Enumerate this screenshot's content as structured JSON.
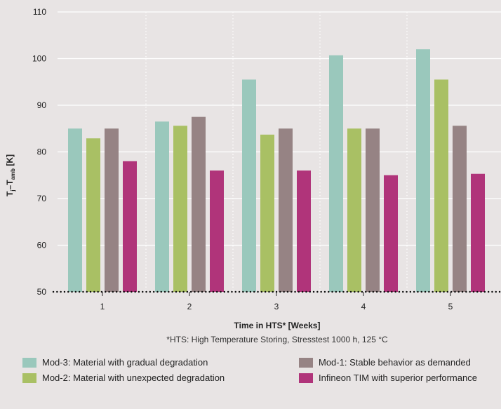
{
  "chart_data": {
    "type": "bar",
    "categories": [
      "1",
      "2",
      "3",
      "4",
      "5"
    ],
    "series": [
      {
        "name": "Mod-3: Material with gradual degradation",
        "values": [
          85,
          86.5,
          95.5,
          100.7,
          102
        ],
        "color": "#9ac8bc"
      },
      {
        "name": "Mod-2: Material with unexpected degradation",
        "values": [
          82.9,
          85.6,
          83.7,
          85,
          95.5
        ],
        "color": "#a9c064"
      },
      {
        "name": "Mod-1: Stable behavior as demanded",
        "values": [
          85,
          87.5,
          85,
          85,
          85.6
        ],
        "color": "#968384"
      },
      {
        "name": "Infineon TIM with superior performance",
        "values": [
          78,
          76,
          76,
          75,
          75.3
        ],
        "color": "#b0347a"
      }
    ],
    "ylim": [
      50,
      110
    ],
    "yticks": [
      50,
      60,
      70,
      80,
      90,
      100,
      110
    ],
    "ylabel": {
      "main": "T",
      "sub1": "j",
      "mid": "–T",
      "sub2": "amb",
      "unit": " [K]"
    },
    "xlabel": "Time in HTS* [Weeks]",
    "footnote": "*HTS: High Temperature Storing, Stresstest 1000 h, 125 °C",
    "legend_position": "bottom",
    "grid": {
      "horizontal": true,
      "vertical_separators": "dotted"
    }
  }
}
